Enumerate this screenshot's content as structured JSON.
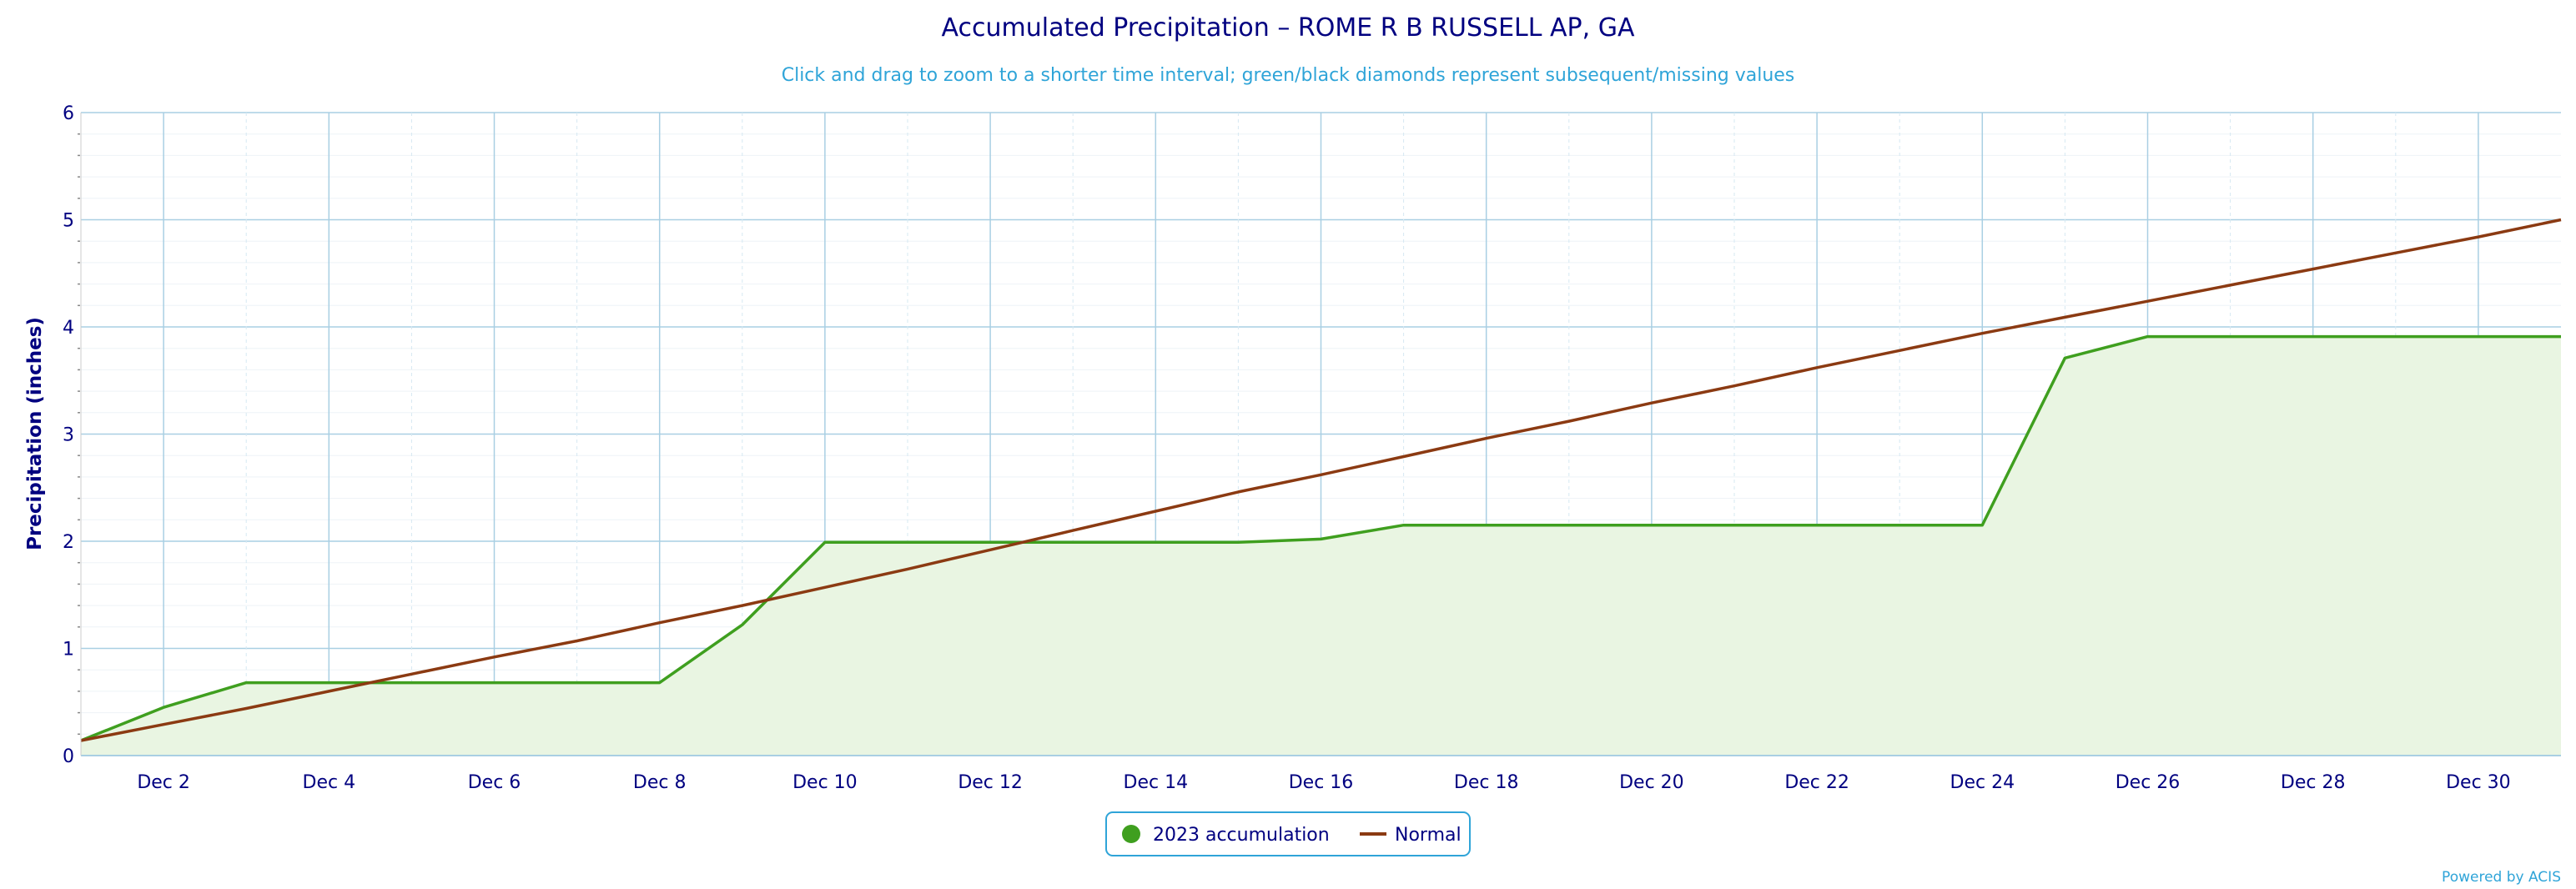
{
  "chart_data": {
    "type": "line",
    "title": "Accumulated Precipitation – ROME R B RUSSELL AP, GA",
    "subtitle": "Click and drag to zoom to a shorter time interval; green/black diamonds represent subsequent/missing values",
    "ylabel": "Precipitation (inches)",
    "xlabel": "",
    "ylim": [
      0,
      6
    ],
    "yticks": [
      0,
      1,
      2,
      3,
      4,
      5,
      6
    ],
    "xlim": [
      1,
      31
    ],
    "x_tick_values": [
      2,
      4,
      6,
      8,
      10,
      12,
      14,
      16,
      18,
      20,
      22,
      24,
      26,
      28,
      30
    ],
    "x_tick_labels": [
      "Dec 2",
      "Dec 4",
      "Dec 6",
      "Dec 8",
      "Dec 10",
      "Dec 12",
      "Dec 14",
      "Dec 16",
      "Dec 18",
      "Dec 20",
      "Dec 22",
      "Dec 24",
      "Dec 26",
      "Dec 28",
      "Dec 30"
    ],
    "grid": true,
    "legend_position": "bottom-center",
    "series": [
      {
        "name": "2023 accumulation",
        "style": "area",
        "color": "#3f9f1f",
        "fill": "#e9f5e2",
        "x": [
          1,
          2,
          3,
          4,
          5,
          6,
          7,
          8,
          9,
          10,
          11,
          12,
          13,
          14,
          15,
          16,
          17,
          18,
          19,
          20,
          21,
          22,
          23,
          24,
          25,
          26,
          27,
          28,
          29,
          30,
          31
        ],
        "y": [
          0.14,
          0.45,
          0.68,
          0.68,
          0.68,
          0.68,
          0.68,
          0.68,
          1.22,
          1.99,
          1.99,
          1.99,
          1.99,
          1.99,
          1.99,
          2.02,
          2.15,
          2.15,
          2.15,
          2.15,
          2.15,
          2.15,
          2.15,
          2.15,
          3.71,
          3.91,
          3.91,
          3.91,
          3.91,
          3.91,
          3.91
        ]
      },
      {
        "name": "Normal",
        "style": "line",
        "color": "#8b3a12",
        "x": [
          1,
          2,
          3,
          4,
          5,
          6,
          7,
          8,
          9,
          10,
          11,
          12,
          13,
          14,
          15,
          16,
          17,
          18,
          19,
          20,
          21,
          22,
          23,
          24,
          25,
          26,
          27,
          28,
          29,
          30,
          31
        ],
        "y": [
          0.14,
          0.29,
          0.44,
          0.6,
          0.76,
          0.92,
          1.07,
          1.24,
          1.4,
          1.57,
          1.74,
          1.92,
          2.1,
          2.28,
          2.46,
          2.62,
          2.79,
          2.96,
          3.12,
          3.29,
          3.45,
          3.62,
          3.78,
          3.94,
          4.09,
          4.24,
          4.39,
          4.54,
          4.69,
          4.84,
          5.0
        ]
      }
    ]
  },
  "legend": {
    "items": [
      "2023 accumulation",
      "Normal"
    ]
  },
  "credit": "Powered by ACIS",
  "colors": {
    "axis_text": "#000080",
    "grid": "#a9cfe3",
    "legend_border": "#2fa4d8"
  }
}
